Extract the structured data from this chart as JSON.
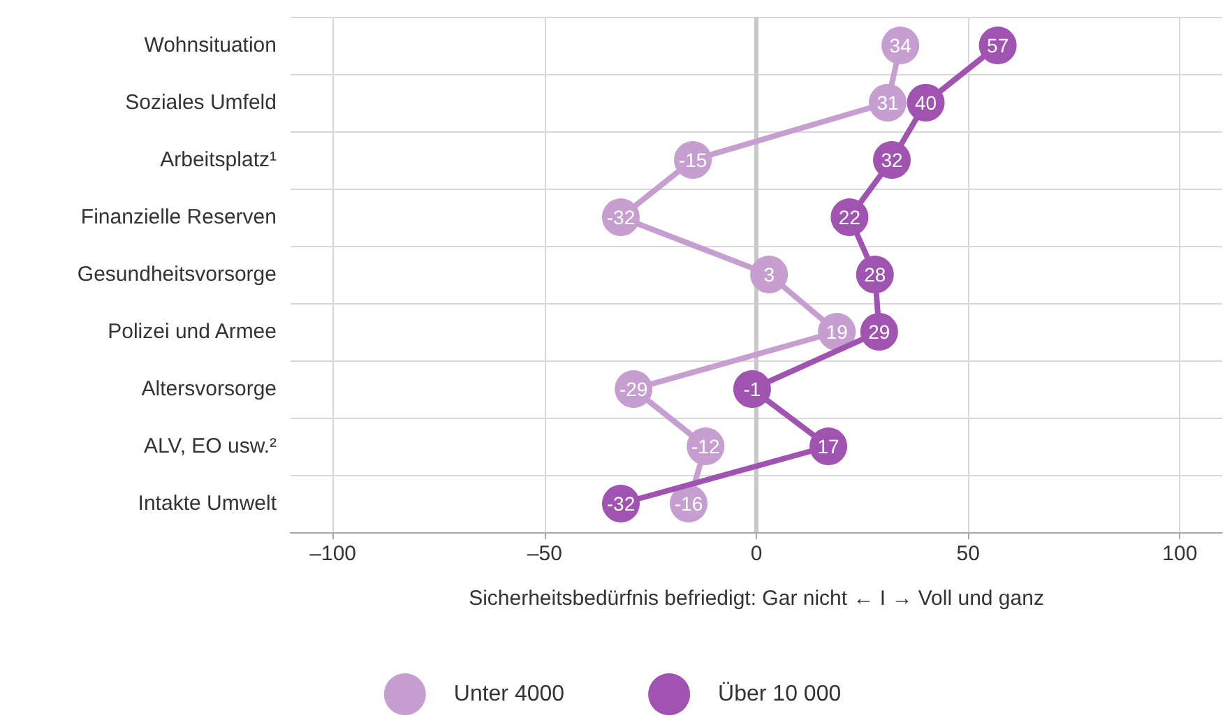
{
  "chart_data": {
    "type": "line",
    "orientation": "horizontal",
    "xlabel": "Sicherheitsbedürfnis befriedigt: Gar nicht ← I → Voll und ganz",
    "categories": [
      "Wohnsituation",
      "Soziales Umfeld",
      "Arbeitsplatz¹",
      "Finanzielle Reserven",
      "Gesundheitsvorsorge",
      "Polizei und Armee",
      "Altersvorsorge",
      "ALV, EO usw.²",
      "Intakte Umwelt"
    ],
    "series": [
      {
        "name": "Unter 4000",
        "color": "#c69fd0",
        "values": [
          34,
          31,
          -15,
          -32,
          3,
          19,
          -29,
          -12,
          -16
        ]
      },
      {
        "name": "Über 10 000",
        "color": "#a053b0",
        "values": [
          57,
          40,
          32,
          22,
          28,
          29,
          -1,
          17,
          -32
        ]
      }
    ],
    "xlim": [
      -110,
      110
    ],
    "xticks": [
      {
        "value": -100,
        "label": "–100"
      },
      {
        "value": -50,
        "label": "–50"
      },
      0,
      50,
      100
    ],
    "ref_lines": [
      {
        "axis": "x",
        "value": 0,
        "color": "#c8c8c8"
      }
    ],
    "grid": true,
    "legend": "bottom",
    "marker": "circle",
    "line_style": "solid",
    "data_labels": true
  }
}
